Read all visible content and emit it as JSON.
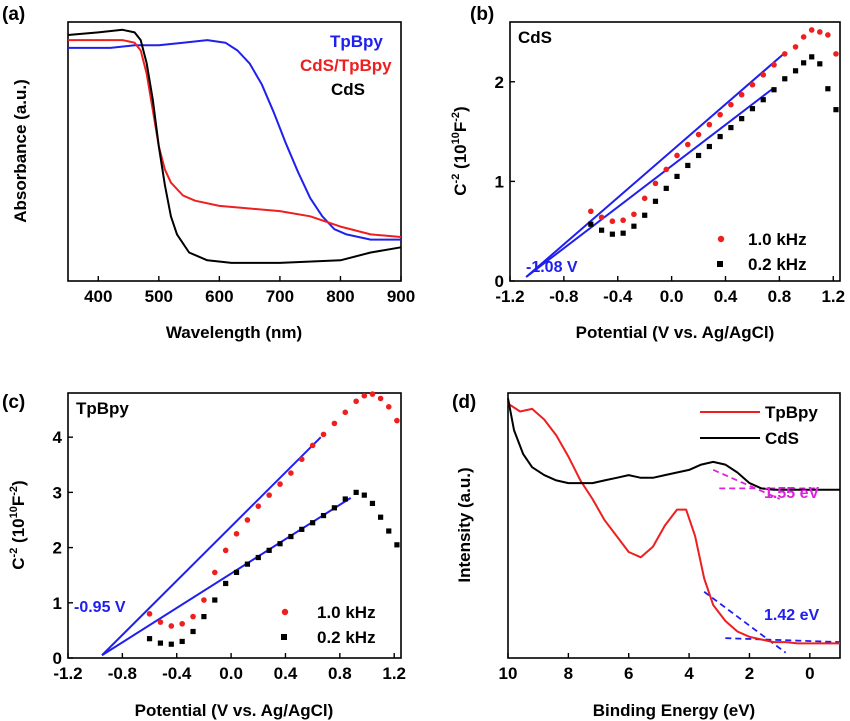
{
  "chart_data": [
    {
      "type": "line",
      "panel_label": "(a)",
      "xlabel": "Wavelength (nm)",
      "ylabel": "Absorbance (a.u.)",
      "xlim": [
        350,
        900
      ],
      "ylim": [
        0,
        1
      ],
      "xticks": [
        "400",
        "500",
        "600",
        "700",
        "800",
        "900"
      ],
      "y_tick_labels_shown": false,
      "legend_placement": "top-right (text only)",
      "series": [
        {
          "name": "TpBpy",
          "color": "#2020ee",
          "x": [
            350,
            380,
            420,
            460,
            500,
            540,
            580,
            610,
            630,
            650,
            670,
            690,
            710,
            730,
            750,
            770,
            790,
            810,
            830,
            850,
            870,
            900
          ],
          "y": [
            0.9,
            0.9,
            0.9,
            0.91,
            0.91,
            0.92,
            0.93,
            0.92,
            0.89,
            0.84,
            0.76,
            0.65,
            0.53,
            0.42,
            0.32,
            0.25,
            0.2,
            0.18,
            0.17,
            0.16,
            0.16,
            0.16
          ]
        },
        {
          "name": "CdS/TpBpy",
          "color": "#ee1f1f",
          "x": [
            350,
            400,
            440,
            460,
            470,
            480,
            490,
            500,
            510,
            520,
            540,
            560,
            600,
            650,
            700,
            750,
            800,
            850,
            900
          ],
          "y": [
            0.93,
            0.93,
            0.93,
            0.92,
            0.89,
            0.8,
            0.66,
            0.52,
            0.43,
            0.38,
            0.33,
            0.31,
            0.29,
            0.28,
            0.27,
            0.25,
            0.21,
            0.18,
            0.17
          ]
        },
        {
          "name": "CdS",
          "color": "#000000",
          "x": [
            350,
            400,
            440,
            460,
            470,
            480,
            490,
            500,
            510,
            520,
            530,
            550,
            580,
            620,
            700,
            800,
            850,
            900
          ],
          "y": [
            0.95,
            0.96,
            0.97,
            0.96,
            0.93,
            0.84,
            0.7,
            0.52,
            0.37,
            0.25,
            0.18,
            0.11,
            0.08,
            0.07,
            0.07,
            0.08,
            0.11,
            0.13
          ]
        }
      ]
    },
    {
      "type": "scatter",
      "panel_label": "(b)",
      "title": "CdS",
      "xlabel": "Potential (V vs. Ag/AgCl)",
      "ylabel": "C-2 (1010F-2)",
      "xlim": [
        -1.2,
        1.25
      ],
      "ylim": [
        0,
        2.6
      ],
      "xticks": [
        "-1.2",
        "-0.8",
        "-0.4",
        "0.0",
        "0.4",
        "0.8",
        "1.2"
      ],
      "yticks": [
        "0",
        "1",
        "2"
      ],
      "legend_placement": "bottom-right",
      "annotation": "-1.08 V",
      "series": [
        {
          "name": "1.0 kHz",
          "color": "#ee1f1f",
          "marker": "circle",
          "x": [
            -0.6,
            -0.52,
            -0.44,
            -0.36,
            -0.28,
            -0.2,
            -0.12,
            -0.04,
            0.04,
            0.12,
            0.2,
            0.28,
            0.36,
            0.44,
            0.52,
            0.6,
            0.68,
            0.76,
            0.84,
            0.92,
            0.98,
            1.04,
            1.1,
            1.16,
            1.22
          ],
          "y": [
            0.7,
            0.64,
            0.6,
            0.61,
            0.67,
            0.83,
            0.98,
            1.12,
            1.26,
            1.37,
            1.47,
            1.57,
            1.67,
            1.77,
            1.87,
            1.97,
            2.07,
            2.17,
            2.28,
            2.35,
            2.45,
            2.52,
            2.5,
            2.47,
            2.28
          ]
        },
        {
          "name": "0.2 kHz",
          "color": "#000000",
          "marker": "square",
          "x": [
            -0.6,
            -0.52,
            -0.44,
            -0.36,
            -0.28,
            -0.2,
            -0.12,
            -0.04,
            0.04,
            0.12,
            0.2,
            0.28,
            0.36,
            0.44,
            0.52,
            0.6,
            0.68,
            0.76,
            0.84,
            0.92,
            0.98,
            1.04,
            1.1,
            1.16,
            1.22
          ],
          "y": [
            0.57,
            0.51,
            0.47,
            0.48,
            0.55,
            0.66,
            0.8,
            0.93,
            1.05,
            1.16,
            1.26,
            1.35,
            1.45,
            1.54,
            1.63,
            1.73,
            1.82,
            1.92,
            2.03,
            2.11,
            2.19,
            2.25,
            2.18,
            1.93,
            1.72
          ]
        }
      ],
      "fit_lines": [
        {
          "x": [
            -1.08,
            0.84
          ],
          "y": [
            0.04,
            2.29
          ],
          "color": "#2020ee"
        },
        {
          "x": [
            -1.08,
            0.76
          ],
          "y": [
            0.04,
            1.94
          ],
          "color": "#2020ee"
        }
      ]
    },
    {
      "type": "scatter",
      "panel_label": "(c)",
      "title": "TpBpy",
      "xlabel": "Potential (V vs. Ag/AgCl)",
      "ylabel": "C-2 (1010F-2)",
      "xlim": [
        -1.2,
        1.25
      ],
      "ylim": [
        0,
        4.8
      ],
      "xticks": [
        "-1.2",
        "-0.8",
        "-0.4",
        "0.0",
        "0.4",
        "0.8",
        "1.2"
      ],
      "yticks": [
        "0",
        "1",
        "2",
        "3",
        "4"
      ],
      "legend_placement": "bottom-right",
      "annotation": "-0.95 V",
      "series": [
        {
          "name": "1.0 kHz",
          "color": "#ee1f1f",
          "marker": "circle",
          "x": [
            -0.6,
            -0.52,
            -0.44,
            -0.36,
            -0.28,
            -0.2,
            -0.12,
            -0.04,
            0.04,
            0.12,
            0.2,
            0.28,
            0.36,
            0.44,
            0.52,
            0.6,
            0.68,
            0.76,
            0.84,
            0.92,
            0.98,
            1.04,
            1.1,
            1.16,
            1.22
          ],
          "y": [
            0.8,
            0.65,
            0.58,
            0.62,
            0.75,
            1.05,
            1.55,
            1.95,
            2.25,
            2.5,
            2.75,
            2.95,
            3.15,
            3.35,
            3.6,
            3.85,
            4.05,
            4.25,
            4.45,
            4.65,
            4.75,
            4.78,
            4.7,
            4.55,
            4.3
          ]
        },
        {
          "name": "0.2 kHz",
          "color": "#000000",
          "marker": "square",
          "x": [
            -0.6,
            -0.52,
            -0.44,
            -0.36,
            -0.28,
            -0.2,
            -0.12,
            -0.04,
            0.04,
            0.12,
            0.2,
            0.28,
            0.36,
            0.44,
            0.52,
            0.6,
            0.68,
            0.76,
            0.84,
            0.92,
            0.98,
            1.04,
            1.1,
            1.16,
            1.22
          ],
          "y": [
            0.35,
            0.27,
            0.25,
            0.3,
            0.48,
            0.75,
            1.05,
            1.35,
            1.55,
            1.7,
            1.82,
            1.95,
            2.07,
            2.2,
            2.33,
            2.45,
            2.58,
            2.72,
            2.88,
            3.0,
            2.95,
            2.8,
            2.55,
            2.3,
            2.05
          ]
        }
      ],
      "fit_lines": [
        {
          "x": [
            -0.95,
            0.66
          ],
          "y": [
            0.05,
            4.0
          ],
          "color": "#2020ee"
        },
        {
          "x": [
            -0.95,
            0.88
          ],
          "y": [
            0.05,
            2.9
          ],
          "color": "#2020ee"
        }
      ]
    },
    {
      "type": "line",
      "panel_label": "(d)",
      "xlabel": "Binding Energy (eV)",
      "ylabel": "Intensity (a.u.)",
      "xlim": [
        10,
        -1
      ],
      "ylim": [
        0,
        1
      ],
      "xticks": [
        "10",
        "8",
        "6",
        "4",
        "2",
        "0"
      ],
      "y_tick_labels_shown": false,
      "legend_placement": "top-right",
      "series": [
        {
          "name": "TpBpy",
          "color": "#ee1f1f",
          "x": [
            10,
            9.6,
            9.2,
            8.8,
            8.4,
            8.0,
            7.6,
            7.2,
            6.8,
            6.4,
            6.0,
            5.6,
            5.2,
            4.8,
            4.4,
            4.1,
            3.8,
            3.5,
            3.2,
            2.8,
            2.4,
            2.0,
            1.6,
            1.2,
            0.8,
            0.4,
            0.0,
            -0.5,
            -1.0
          ],
          "y": [
            0.96,
            0.93,
            0.94,
            0.9,
            0.84,
            0.76,
            0.67,
            0.6,
            0.52,
            0.46,
            0.4,
            0.38,
            0.42,
            0.5,
            0.56,
            0.56,
            0.46,
            0.3,
            0.2,
            0.14,
            0.1,
            0.08,
            0.07,
            0.06,
            0.06,
            0.055,
            0.055,
            0.055,
            0.055
          ]
        },
        {
          "name": "CdS",
          "color": "#000000",
          "x": [
            10,
            9.8,
            9.5,
            9.2,
            8.8,
            8.4,
            8.0,
            7.6,
            7.2,
            6.8,
            6.4,
            6.0,
            5.6,
            5.2,
            4.8,
            4.4,
            4.0,
            3.6,
            3.2,
            2.8,
            2.4,
            2.0,
            1.6,
            1.2,
            0.8,
            0.4,
            0.0,
            -0.5,
            -1.0
          ],
          "y": [
            0.98,
            0.86,
            0.77,
            0.72,
            0.69,
            0.67,
            0.66,
            0.66,
            0.66,
            0.67,
            0.68,
            0.69,
            0.68,
            0.68,
            0.69,
            0.7,
            0.71,
            0.73,
            0.74,
            0.73,
            0.7,
            0.66,
            0.64,
            0.635,
            0.635,
            0.635,
            0.635,
            0.635,
            0.635
          ]
        }
      ],
      "tangent_lines": [
        {
          "x": [
            3.2,
            1.0
          ],
          "y": [
            0.71,
            0.6
          ],
          "color": "#e020e0",
          "style": "dashed"
        },
        {
          "x": [
            3.0,
            -0.3
          ],
          "y": [
            0.64,
            0.64
          ],
          "color": "#e020e0",
          "style": "dashed"
        },
        {
          "x": [
            3.5,
            0.8
          ],
          "y": [
            0.25,
            0.02
          ],
          "color": "#2020ee",
          "style": "dashed"
        },
        {
          "x": [
            2.8,
            -1.0
          ],
          "y": [
            0.075,
            0.06
          ],
          "color": "#2020ee",
          "style": "dashed"
        }
      ],
      "annotations": [
        {
          "text": "1.55 eV",
          "color": "#e020e0"
        },
        {
          "text": "1.42 eV",
          "color": "#2020ee"
        }
      ]
    }
  ]
}
